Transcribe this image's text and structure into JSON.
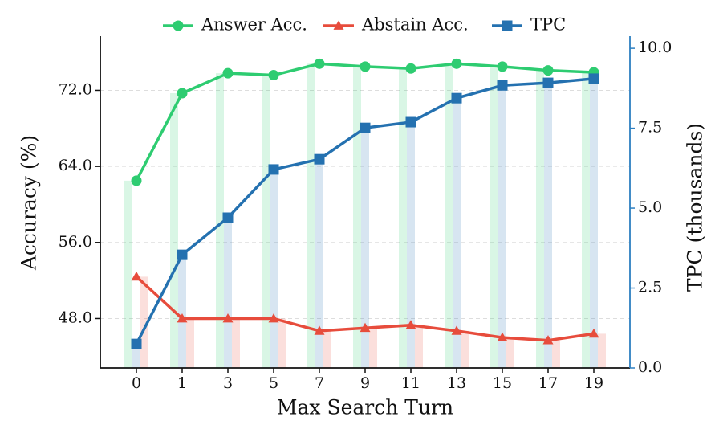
{
  "chart_data": {
    "type": "line",
    "categories": [
      "0",
      "1",
      "3",
      "5",
      "7",
      "9",
      "11",
      "13",
      "15",
      "17",
      "19"
    ],
    "xlabel": "Max Search Turn",
    "ylabel": "Accuracy (%)",
    "y2label": "TPC (thousands)",
    "ylim": [
      42.8,
      77.7
    ],
    "yticks": [
      {
        "value": 48,
        "label": "48.0"
      },
      {
        "value": 56,
        "label": "56.0"
      },
      {
        "value": 64,
        "label": "64.0"
      },
      {
        "value": 72,
        "label": "72.0"
      }
    ],
    "y2lim": [
      0,
      10.38
    ],
    "y2ticks": [
      {
        "value": 0,
        "label": "0.0"
      },
      {
        "value": 2.5,
        "label": "2.5"
      },
      {
        "value": 5,
        "label": "5.0"
      },
      {
        "value": 7.5,
        "label": "7.5"
      },
      {
        "value": 10,
        "label": "10.0"
      }
    ],
    "y2color": "#2d7fc1",
    "grid": true,
    "legend": "upper center",
    "series": [
      {
        "name": "Answer Acc.",
        "color": "#2ecc71",
        "marker": "circle",
        "values": [
          62.5,
          71.7,
          73.8,
          73.6,
          74.8,
          74.5,
          74.3,
          74.8,
          74.5,
          74.1,
          73.9
        ]
      },
      {
        "name": "Abstain Acc.",
        "color": "#e74c3c",
        "marker": "triangle",
        "values": [
          52.4,
          48.0,
          48.0,
          48.0,
          46.7,
          47.0,
          47.3,
          46.7,
          46.0,
          45.7,
          46.4
        ]
      },
      {
        "name": "TPC",
        "color": "#2471b0",
        "marker": "square",
        "axis": "y2",
        "values": [
          0.75,
          3.54,
          4.7,
          6.21,
          6.53,
          7.51,
          7.69,
          8.44,
          8.84,
          8.92,
          9.05
        ]
      }
    ]
  }
}
